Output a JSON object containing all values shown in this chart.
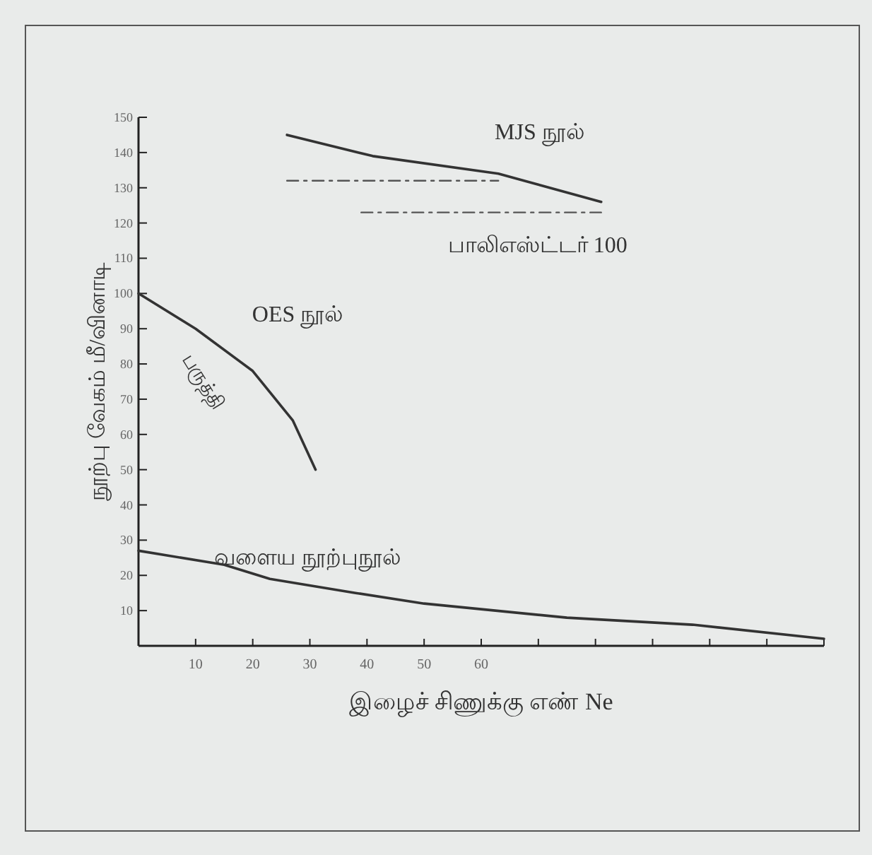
{
  "chart_data": {
    "type": "line",
    "xlabel": "இழைச் சிணுக்கு எண் Ne",
    "ylabel": "நூற்பு வேகம் மீ/வினாடி",
    "xlim": [
      0,
      120
    ],
    "ylim": [
      0,
      150
    ],
    "xticks": [
      10,
      20,
      30,
      40,
      50,
      60,
      {
        "value": 70,
        "label": null
      },
      {
        "value": 80,
        "label": null
      },
      {
        "value": 90,
        "label": null
      },
      {
        "value": 100,
        "label": null
      },
      {
        "value": 110,
        "label": null
      },
      {
        "value": 120,
        "label": null
      }
    ],
    "yticks": [
      10,
      20,
      30,
      40,
      50,
      60,
      70,
      80,
      90,
      100,
      110,
      120,
      130,
      140,
      150
    ],
    "grid": false,
    "series": [
      {
        "type": "line",
        "name": "OES நூல்",
        "color": "#333333",
        "line_style": "solid",
        "x": [
          0,
          10,
          20,
          27,
          31
        ],
        "values": [
          100,
          90,
          78,
          64,
          50
        ]
      },
      {
        "type": "line",
        "name": "வளைய நூற்புநூல்",
        "color": "#333333",
        "line_style": "solid",
        "x": [
          0,
          15,
          23,
          38,
          50,
          75,
          97,
          120
        ],
        "values": [
          27,
          23,
          19,
          15,
          12,
          8,
          6,
          2
        ]
      },
      {
        "type": "line",
        "name": "MJS நூல்",
        "color": "#333333",
        "line_style": "solid",
        "x": [
          26,
          41,
          63,
          81
        ],
        "values": [
          145,
          139,
          134,
          126
        ]
      },
      {
        "type": "line",
        "color": "#555555",
        "line_style": "dashed",
        "x": [
          26,
          63
        ],
        "values": [
          132,
          132
        ]
      },
      {
        "type": "line",
        "name": "பாலிஎஸ்ட்டர் 100",
        "color": "#555555",
        "line_style": "dashed",
        "x": [
          39,
          81
        ],
        "values": [
          123,
          123
        ]
      }
    ],
    "annotations": [
      "பருத்தி"
    ]
  }
}
